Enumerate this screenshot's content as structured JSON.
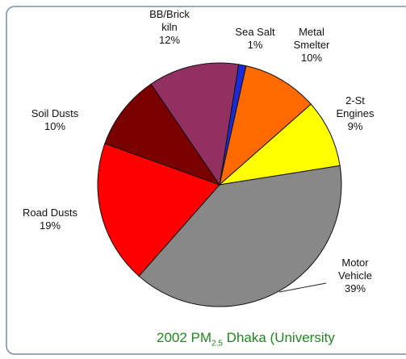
{
  "chart_data": {
    "type": "pie",
    "categories": [
      "Sea Salt",
      "Metal Smelter",
      "2-St Engines",
      "Motor Vehicle",
      "Road Dusts",
      "Soil Dusts",
      "BB/Brick kiln"
    ],
    "values": [
      1,
      10,
      9,
      39,
      19,
      10,
      12
    ],
    "value_labels": [
      "1%",
      "10%",
      "9%",
      "39%",
      "19%",
      "10%",
      "12%"
    ],
    "colors": [
      "#1a2ad6",
      "#ff6a00",
      "#ffff00",
      "#888888",
      "#ff0000",
      "#7a0000",
      "#933062"
    ],
    "title": {
      "text": "2002 PM",
      "subscript": "2.5",
      "rest": " Dhaka (University"
    }
  }
}
